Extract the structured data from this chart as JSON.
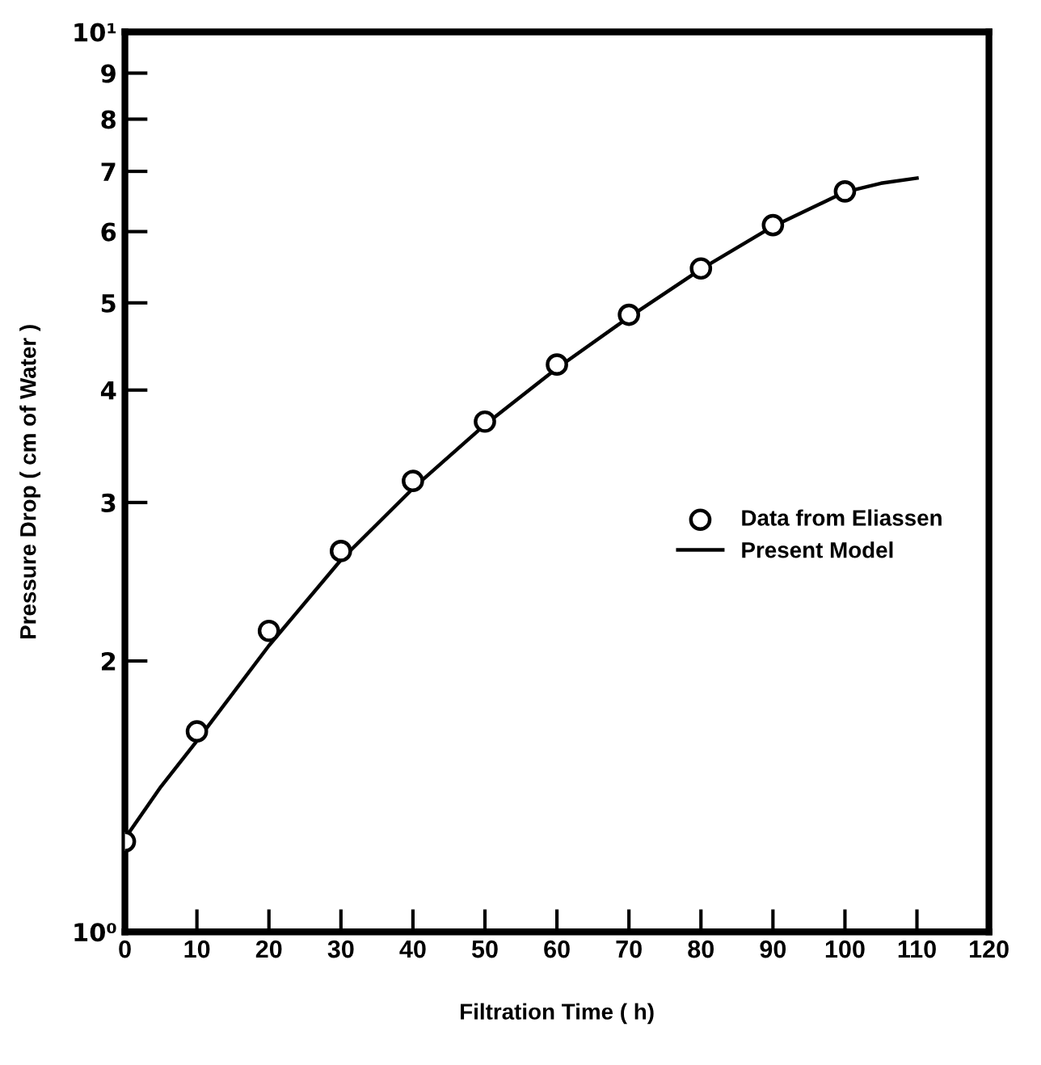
{
  "chart_data": {
    "type": "scatter",
    "xlabel": "Filtration Time ( h)",
    "ylabel": "Pressure Drop ( cm of Water )",
    "log": "y",
    "grid": false,
    "legend": "right",
    "xlim": [
      0,
      120
    ],
    "xticks": [
      0,
      10,
      20,
      30,
      40,
      50,
      60,
      70,
      80,
      90,
      100,
      110,
      120
    ],
    "ylim": [
      1,
      10
    ],
    "yticks": [
      {
        "value": 1,
        "label": "10⁰"
      },
      2,
      3,
      4,
      5,
      6,
      7,
      8,
      9,
      {
        "value": 10,
        "label": "10¹"
      }
    ],
    "series": [
      {
        "name": "Data from Eliassen",
        "marker": "circle",
        "color": "#000000",
        "x": [
          0,
          10,
          20,
          30,
          40,
          50,
          60,
          70,
          80,
          90,
          100
        ],
        "values": [
          1.26,
          1.67,
          2.16,
          2.65,
          3.17,
          3.69,
          4.27,
          4.85,
          5.46,
          6.1,
          6.65
        ]
      },
      {
        "name": "Present Model",
        "type": "line",
        "line_style": "solid",
        "color": "#000000",
        "x": [
          0,
          5,
          10,
          20,
          30,
          40,
          50,
          60,
          70,
          80,
          90,
          100,
          105,
          110
        ],
        "values": [
          1.27,
          1.45,
          1.63,
          2.08,
          2.59,
          3.11,
          3.66,
          4.23,
          4.82,
          5.45,
          6.08,
          6.64,
          6.79,
          6.88
        ]
      }
    ]
  }
}
